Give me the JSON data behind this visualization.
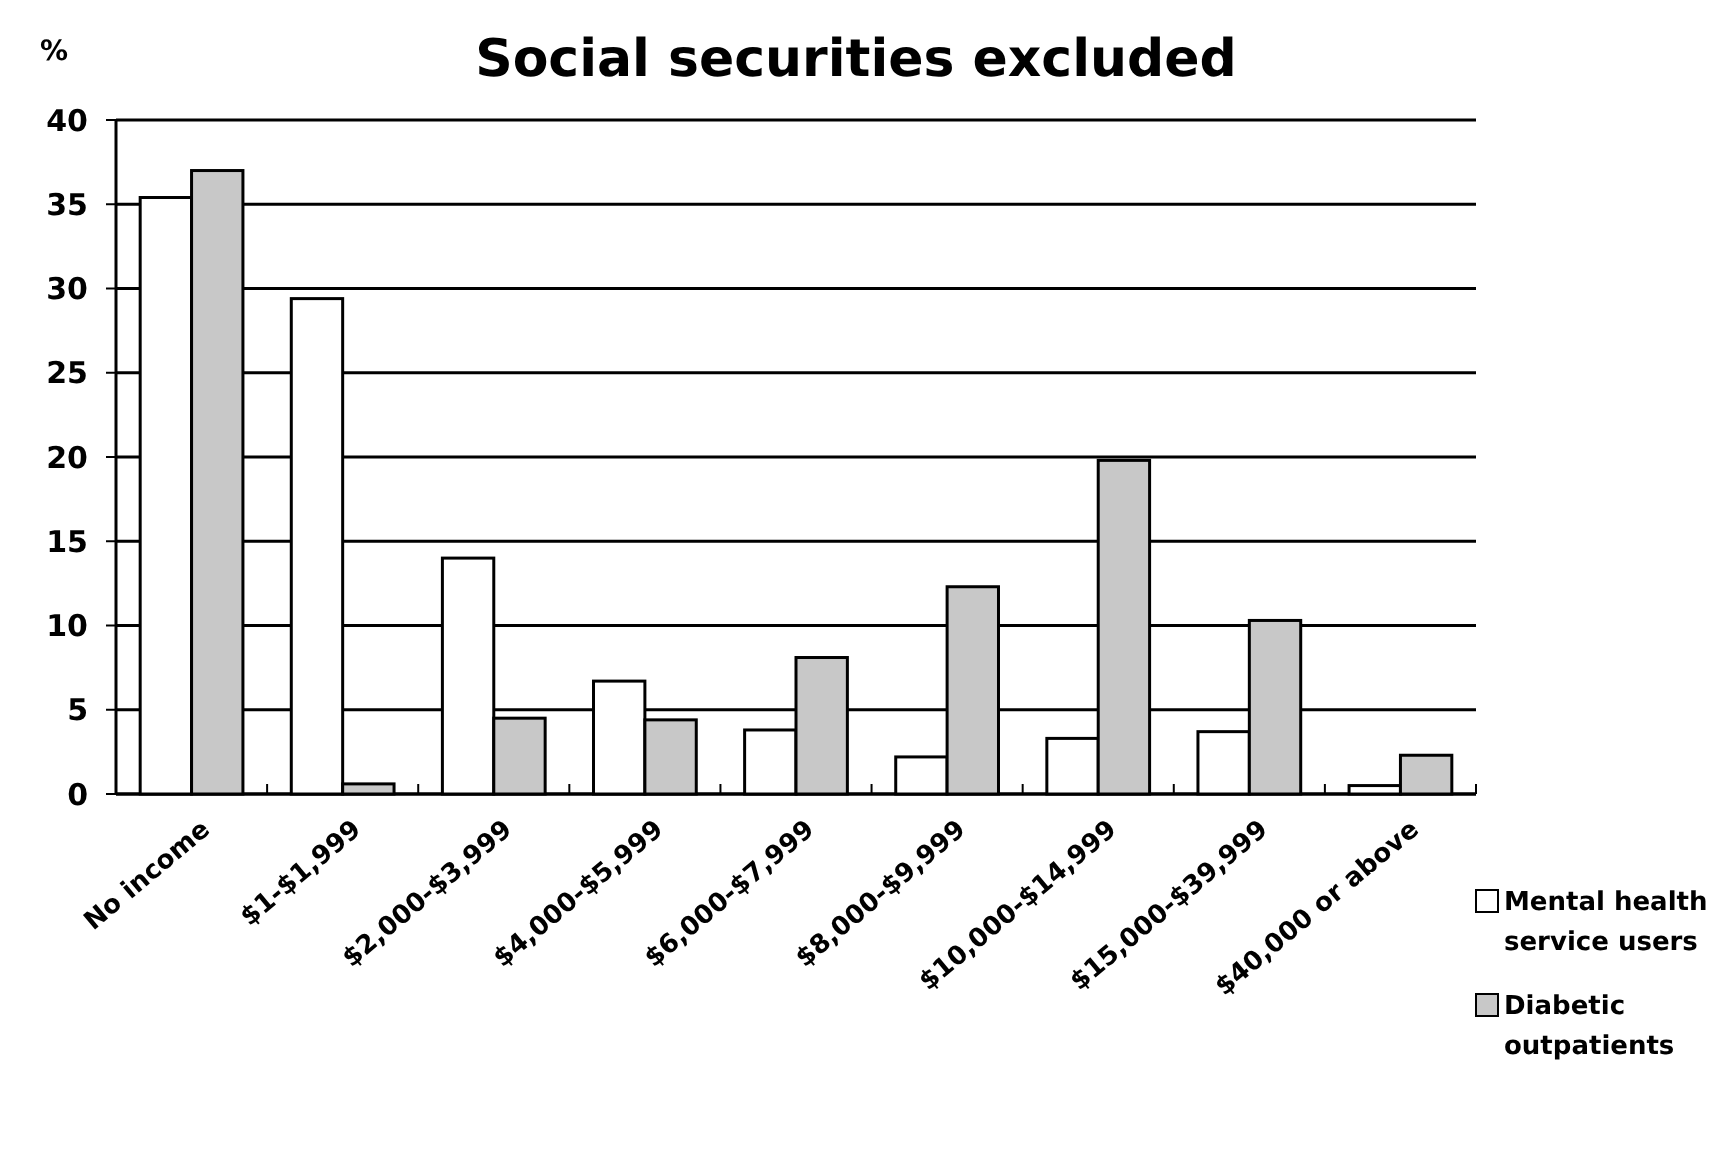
{
  "chart_data": {
    "type": "bar",
    "title": "Social securities excluded",
    "ylabel": "%",
    "categories": [
      "No income",
      "$1-$1,999",
      "$2,000-$3,999",
      "$4,000-$5,999",
      "$6,000-$7,999",
      "$8,000-$9,999",
      "$10,000-$14,999",
      "$15,000-$39,999",
      "$40,000 or above"
    ],
    "series": [
      {
        "name": "Mental health service users",
        "color": "#ffffff",
        "values": [
          35.4,
          29.4,
          14,
          6.7,
          3.8,
          2.2,
          3.3,
          3.7,
          0.5
        ]
      },
      {
        "name": "Diabetic outpatients",
        "color": "#c8c8c8",
        "values": [
          37,
          0.6,
          4.5,
          4.4,
          8.1,
          12.3,
          19.8,
          10.3,
          2.3
        ]
      }
    ],
    "ylim": [
      0,
      40
    ],
    "yticks": [
      0,
      5,
      10,
      15,
      20,
      25,
      30,
      35,
      40
    ],
    "grid": "y",
    "legend": "bottom right"
  }
}
